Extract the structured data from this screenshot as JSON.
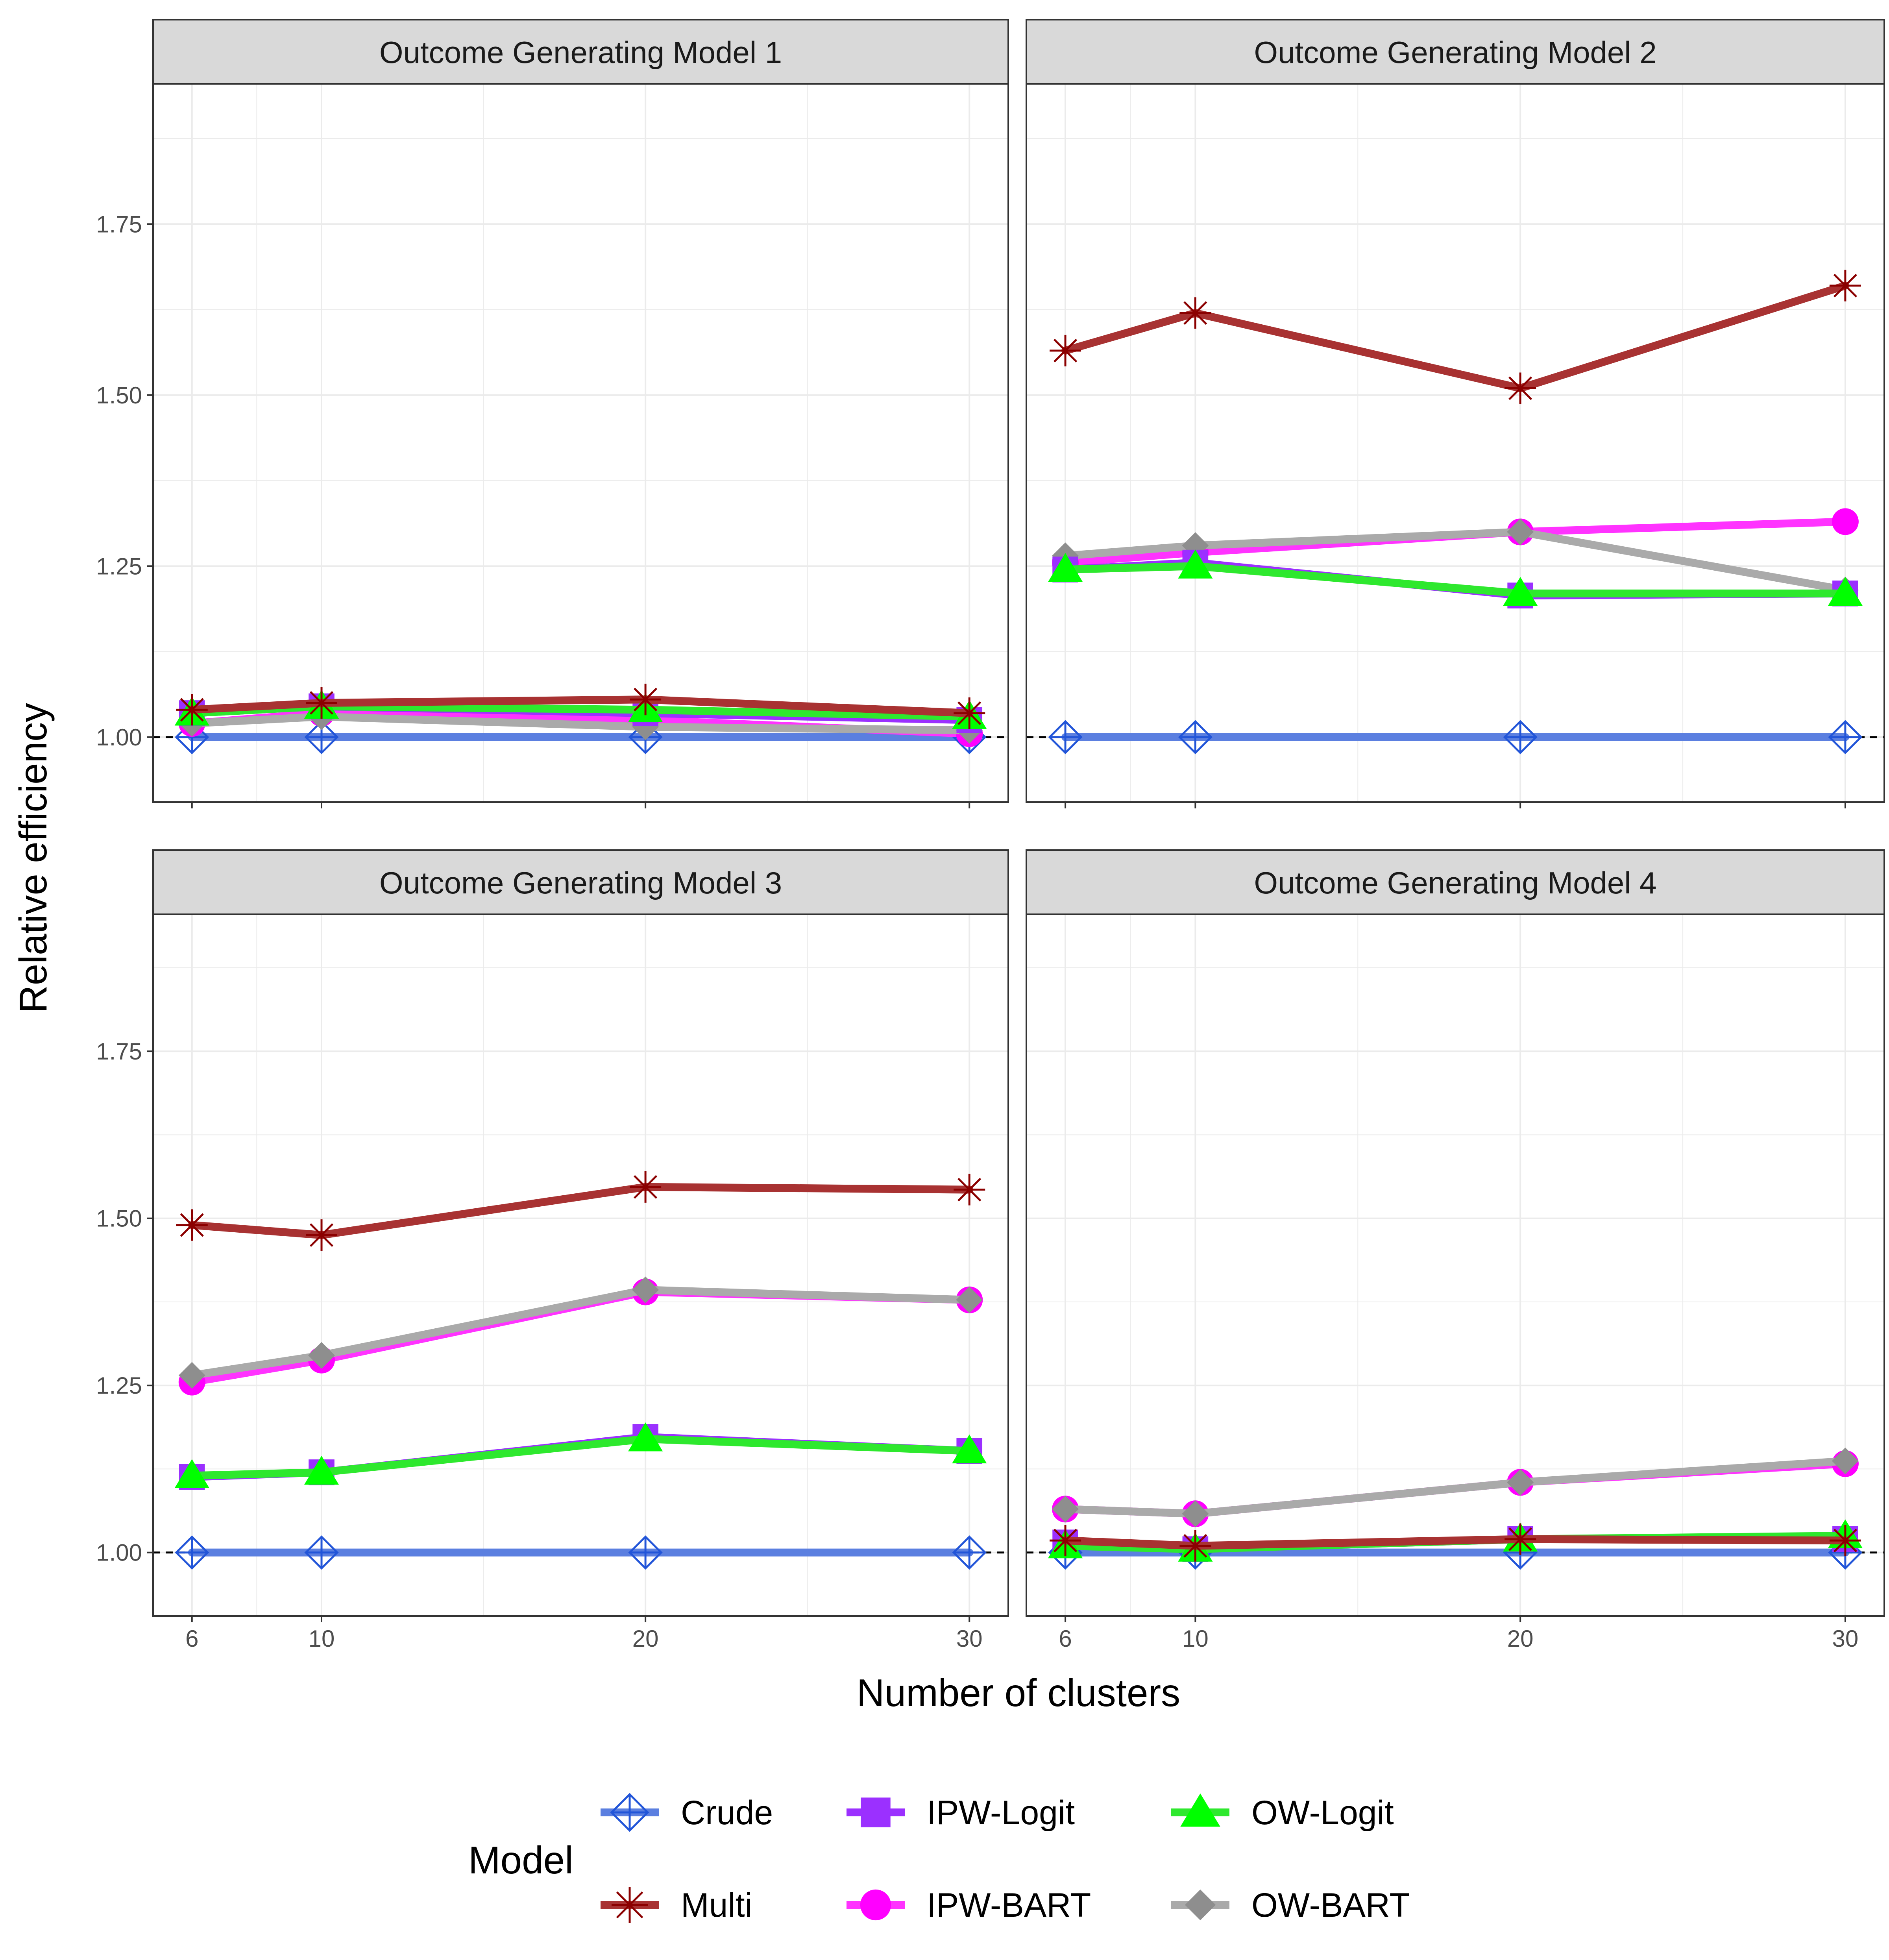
{
  "chart_data": {
    "type": "line",
    "facet_layout": "2x2",
    "xlabel": "Number of clusters",
    "ylabel": "Relative efficiency",
    "x": [
      6,
      10,
      20,
      30
    ],
    "x_ticks": [
      "6",
      "10",
      "20",
      "30"
    ],
    "xlim": [
      4.8,
      31.2
    ],
    "ylim": [
      0.905,
      1.955
    ],
    "y_ticks": [
      1.0,
      1.25,
      1.5,
      1.75
    ],
    "y_tick_labels": [
      "1.00",
      "1.25",
      "1.50",
      "1.75"
    ],
    "reference_line": 1.0,
    "grid": true,
    "legend": {
      "title": "Model",
      "position": "bottom",
      "entries": [
        "Crude",
        "IPW-Logit",
        "OW-Logit",
        "Multi",
        "IPW-BART",
        "OW-BART"
      ]
    },
    "series_style": {
      "Crude": {
        "color": "#5b7fe0",
        "marker": "diamond-plus",
        "marker_color": "#2255d8"
      },
      "IPW-Logit": {
        "color": "#9b30ff",
        "marker": "square",
        "marker_color": "#9b30ff"
      },
      "OW-Logit": {
        "color": "#2ee82e",
        "marker": "triangle",
        "marker_color": "#00ff00"
      },
      "Multi": {
        "color": "#a83232",
        "marker": "asterisk",
        "marker_color": "#8b0000"
      },
      "IPW-BART": {
        "color": "#ff33ff",
        "marker": "circle",
        "marker_color": "#ff00ff"
      },
      "OW-BART": {
        "color": "#aaaaaa",
        "marker": "diamond",
        "marker_color": "#8e8e8e"
      }
    },
    "panels": [
      {
        "title": "Outcome Generating Model 1",
        "series": [
          {
            "name": "Crude",
            "values": [
              1.0,
              1.0,
              1.0,
              1.0
            ]
          },
          {
            "name": "IPW-BART",
            "values": [
              1.02,
              1.035,
              1.025,
              1.005
            ]
          },
          {
            "name": "OW-BART",
            "values": [
              1.02,
              1.03,
              1.015,
              1.01
            ]
          },
          {
            "name": "IPW-Logit",
            "values": [
              1.035,
              1.045,
              1.035,
              1.025
            ]
          },
          {
            "name": "OW-Logit",
            "values": [
              1.035,
              1.045,
              1.04,
              1.03
            ]
          },
          {
            "name": "Multi",
            "values": [
              1.04,
              1.05,
              1.055,
              1.035
            ]
          }
        ]
      },
      {
        "title": "Outcome Generating Model 2",
        "series": [
          {
            "name": "Crude",
            "values": [
              1.0,
              1.0,
              1.0,
              1.0
            ]
          },
          {
            "name": "IPW-BART",
            "values": [
              1.255,
              1.27,
              1.3,
              1.315
            ]
          },
          {
            "name": "OW-BART",
            "values": [
              1.265,
              1.28,
              1.3,
              1.215
            ]
          },
          {
            "name": "IPW-Logit",
            "values": [
              1.245,
              1.255,
              1.207,
              1.21
            ]
          },
          {
            "name": "OW-Logit",
            "values": [
              1.245,
              1.25,
              1.21,
              1.21
            ]
          },
          {
            "name": "Multi",
            "values": [
              1.565,
              1.62,
              1.51,
              1.66
            ]
          }
        ]
      },
      {
        "title": "Outcome Generating Model 3",
        "series": [
          {
            "name": "Crude",
            "values": [
              1.0,
              1.0,
              1.0,
              1.0
            ]
          },
          {
            "name": "IPW-BART",
            "values": [
              1.255,
              1.288,
              1.39,
              1.378
            ]
          },
          {
            "name": "OW-BART",
            "values": [
              1.265,
              1.295,
              1.393,
              1.378
            ]
          },
          {
            "name": "IPW-Logit",
            "values": [
              1.113,
              1.12,
              1.173,
              1.152
            ]
          },
          {
            "name": "OW-Logit",
            "values": [
              1.115,
              1.12,
              1.17,
              1.152
            ]
          },
          {
            "name": "Multi",
            "values": [
              1.49,
              1.475,
              1.547,
              1.543
            ]
          }
        ]
      },
      {
        "title": "Outcome Generating Model 4",
        "series": [
          {
            "name": "Crude",
            "values": [
              1.0,
              1.0,
              1.0,
              1.0
            ]
          },
          {
            "name": "IPW-BART",
            "values": [
              1.065,
              1.058,
              1.105,
              1.133
            ]
          },
          {
            "name": "OW-BART",
            "values": [
              1.065,
              1.058,
              1.105,
              1.137
            ]
          },
          {
            "name": "IPW-Logit",
            "values": [
              1.015,
              1.005,
              1.02,
              1.02
            ]
          },
          {
            "name": "OW-Logit",
            "values": [
              1.01,
              1.005,
              1.02,
              1.025
            ]
          },
          {
            "name": "Multi",
            "values": [
              1.018,
              1.01,
              1.02,
              1.018
            ]
          }
        ]
      }
    ]
  }
}
